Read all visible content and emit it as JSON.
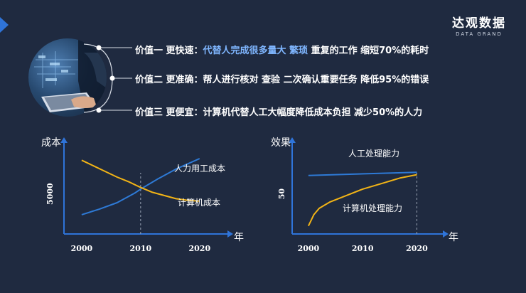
{
  "brand": {
    "name": "达观数据",
    "subtitle": "DATA GRAND"
  },
  "values": [
    {
      "prefix": "价值一 更快速：",
      "highlight": "代替人完成很多量大 繁琐",
      "rest": " 重复的工作  缩短70%的耗时"
    },
    {
      "prefix": "价值二 更准确：",
      "highlight": "",
      "rest": "帮人进行核对 查验 二次确认重要任务 降低95%的错误"
    },
    {
      "prefix": "价值三 更便宜：",
      "highlight": "",
      "rest": "计算机代替人工大幅度降低成本负担   减少50%的人力"
    }
  ],
  "colors": {
    "background": "#1f2a40",
    "axis": "#2f74d9",
    "line_blue": "#2e7ad6",
    "line_gold": "#f2b416",
    "highlight_text": "#7fb6ff"
  },
  "chart_data": [
    {
      "type": "line",
      "ylabel": "成本",
      "xlabel": "年",
      "x_ticks": [
        "2000",
        "2010",
        "2020"
      ],
      "y_ticks": [
        "5000"
      ],
      "xlim": [
        1997,
        2024
      ],
      "ylim": [
        0,
        11000
      ],
      "reference_line_x": 2010,
      "series": [
        {
          "name": "人力用工成本",
          "color": "#2e7ad6",
          "x": [
            2000,
            2003,
            2006,
            2009,
            2010,
            2013,
            2016,
            2020
          ],
          "y": [
            2400,
            3100,
            3900,
            5100,
            5600,
            6900,
            8100,
            9400
          ]
        },
        {
          "name": "计算机成本",
          "color": "#f2b416",
          "x": [
            2000,
            2002,
            2004,
            2006,
            2008,
            2010,
            2012,
            2014,
            2016,
            2018,
            2020
          ],
          "y": [
            9200,
            8500,
            7800,
            7100,
            6500,
            5800,
            5200,
            4800,
            4400,
            4200,
            4100
          ]
        }
      ]
    },
    {
      "type": "line",
      "ylabel": "效果",
      "xlabel": "年",
      "x_ticks": [
        "2000",
        "2010",
        "2020"
      ],
      "y_ticks": [
        "50"
      ],
      "xlim": [
        1997,
        2024
      ],
      "ylim": [
        0,
        110
      ],
      "reference_line_x": 2020,
      "series": [
        {
          "name": "人工处理能力",
          "color": "#2e7ad6",
          "x": [
            2000,
            2020
          ],
          "y": [
            73,
            77
          ]
        },
        {
          "name": "计算机处理能力",
          "color": "#f2b416",
          "x": [
            2000,
            2001,
            2002,
            2004,
            2007,
            2010,
            2014,
            2017,
            2020
          ],
          "y": [
            10,
            24,
            32,
            40,
            48,
            56,
            64,
            70,
            74
          ]
        }
      ]
    }
  ]
}
